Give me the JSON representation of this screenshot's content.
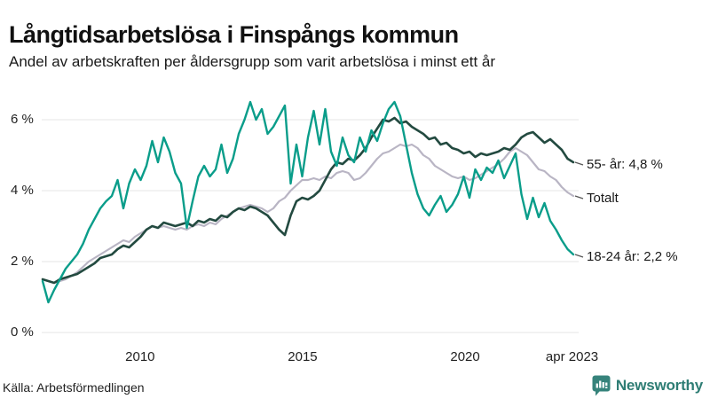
{
  "header": {
    "title": "Långtidsarbetslösa i Finspångs kommun",
    "subtitle": "Andel av arbetskraften per åldersgrupp som varit arbetslösa i minst ett år"
  },
  "footer": {
    "source": "Källa: Arbetsförmedlingen",
    "brand": "Newsworthy",
    "brand_color": "#36837b"
  },
  "chart_data": {
    "type": "line",
    "title": "Långtidsarbetslösa i Finspångs kommun",
    "grid": true,
    "legend_position": "end-of-line-labels",
    "x_axis": {
      "min_year": 2007.0,
      "max_year": 2023.33,
      "ticks": [
        {
          "year": 2010,
          "label": "2010"
        },
        {
          "year": 2015,
          "label": "2015"
        },
        {
          "year": 2020,
          "label": "2020"
        },
        {
          "year": 2023.29,
          "label": "apr 2023"
        }
      ]
    },
    "y_axis": {
      "min": 0,
      "max": 6.6,
      "unit": "%",
      "ticks": [
        {
          "value": 0,
          "label": "0 %"
        },
        {
          "value": 2,
          "label": "2 %"
        },
        {
          "value": 4,
          "label": "4 %"
        },
        {
          "value": 6,
          "label": "6 %"
        }
      ]
    },
    "gridline_color": "#e4e4e4",
    "series": [
      {
        "name": "Totalt",
        "end_label": "Totalt",
        "end_value": 3.85,
        "color": "#b9b5c4",
        "width": 2.2,
        "values": [
          1.5,
          1.45,
          1.4,
          1.45,
          1.5,
          1.6,
          1.7,
          1.85,
          2.0,
          2.1,
          2.2,
          2.3,
          2.4,
          2.5,
          2.6,
          2.55,
          2.7,
          2.8,
          2.9,
          3.0,
          2.95,
          3.0,
          2.95,
          2.9,
          2.95,
          2.9,
          3.0,
          3.05,
          3.0,
          3.1,
          3.05,
          3.2,
          3.3,
          3.4,
          3.5,
          3.55,
          3.6,
          3.55,
          3.5,
          3.4,
          3.5,
          3.7,
          3.8,
          4.0,
          4.15,
          4.3,
          4.3,
          4.35,
          4.3,
          4.4,
          4.35,
          4.5,
          4.55,
          4.5,
          4.3,
          4.35,
          4.5,
          4.7,
          4.9,
          5.05,
          5.1,
          5.2,
          5.3,
          5.25,
          5.3,
          5.2,
          5.0,
          4.9,
          4.7,
          4.6,
          4.5,
          4.4,
          4.35,
          4.4,
          4.3,
          4.35,
          4.45,
          4.55,
          4.65,
          4.75,
          4.9,
          5.1,
          5.2,
          5.1,
          5.0,
          4.8,
          4.6,
          4.55,
          4.4,
          4.3,
          4.1,
          3.95,
          3.85
        ]
      },
      {
        "name": "55- år",
        "end_label": "55- år: 4,8 %",
        "end_value": 4.8,
        "color": "#234a40",
        "width": 2.6,
        "values": [
          1.5,
          1.45,
          1.4,
          1.5,
          1.55,
          1.6,
          1.65,
          1.75,
          1.85,
          1.95,
          2.1,
          2.15,
          2.2,
          2.35,
          2.45,
          2.4,
          2.55,
          2.7,
          2.9,
          3.0,
          2.95,
          3.1,
          3.05,
          3.0,
          3.05,
          3.1,
          3.0,
          3.15,
          3.1,
          3.2,
          3.15,
          3.3,
          3.25,
          3.4,
          3.5,
          3.45,
          3.55,
          3.5,
          3.4,
          3.3,
          3.1,
          2.9,
          2.75,
          3.3,
          3.7,
          3.8,
          3.75,
          3.85,
          4.0,
          4.3,
          4.6,
          4.8,
          4.75,
          4.9,
          4.85,
          5.0,
          5.2,
          5.5,
          5.75,
          6.0,
          5.95,
          6.05,
          5.9,
          5.95,
          5.8,
          5.7,
          5.6,
          5.45,
          5.5,
          5.3,
          5.35,
          5.2,
          5.15,
          5.05,
          5.1,
          4.95,
          5.05,
          5.0,
          5.05,
          5.1,
          5.2,
          5.15,
          5.3,
          5.5,
          5.6,
          5.65,
          5.5,
          5.35,
          5.45,
          5.3,
          5.15,
          4.9,
          4.8
        ]
      },
      {
        "name": "18-24 år",
        "end_label": "18-24 år: 2,2 %",
        "end_value": 2.2,
        "color": "#0a9d8a",
        "width": 2.4,
        "values": [
          1.45,
          0.85,
          1.2,
          1.5,
          1.8,
          2.0,
          2.2,
          2.5,
          2.9,
          3.2,
          3.5,
          3.7,
          3.85,
          4.3,
          3.5,
          4.2,
          4.6,
          4.3,
          4.7,
          5.4,
          4.8,
          5.5,
          5.1,
          4.5,
          4.2,
          2.95,
          3.7,
          4.4,
          4.7,
          4.4,
          4.6,
          5.3,
          4.5,
          4.9,
          5.6,
          6.0,
          6.5,
          6.0,
          6.3,
          5.6,
          5.8,
          6.1,
          6.4,
          4.2,
          5.3,
          4.4,
          5.5,
          6.25,
          5.3,
          6.3,
          5.1,
          4.7,
          5.5,
          5.0,
          4.8,
          5.5,
          5.1,
          5.7,
          5.4,
          5.9,
          6.3,
          6.5,
          6.1,
          5.3,
          4.5,
          3.9,
          3.5,
          3.3,
          3.6,
          3.85,
          3.4,
          3.6,
          3.9,
          4.4,
          3.8,
          4.6,
          4.3,
          4.65,
          4.5,
          4.85,
          4.35,
          4.7,
          5.05,
          3.9,
          3.2,
          3.8,
          3.25,
          3.65,
          3.15,
          2.9,
          2.6,
          2.35,
          2.2
        ]
      }
    ]
  }
}
